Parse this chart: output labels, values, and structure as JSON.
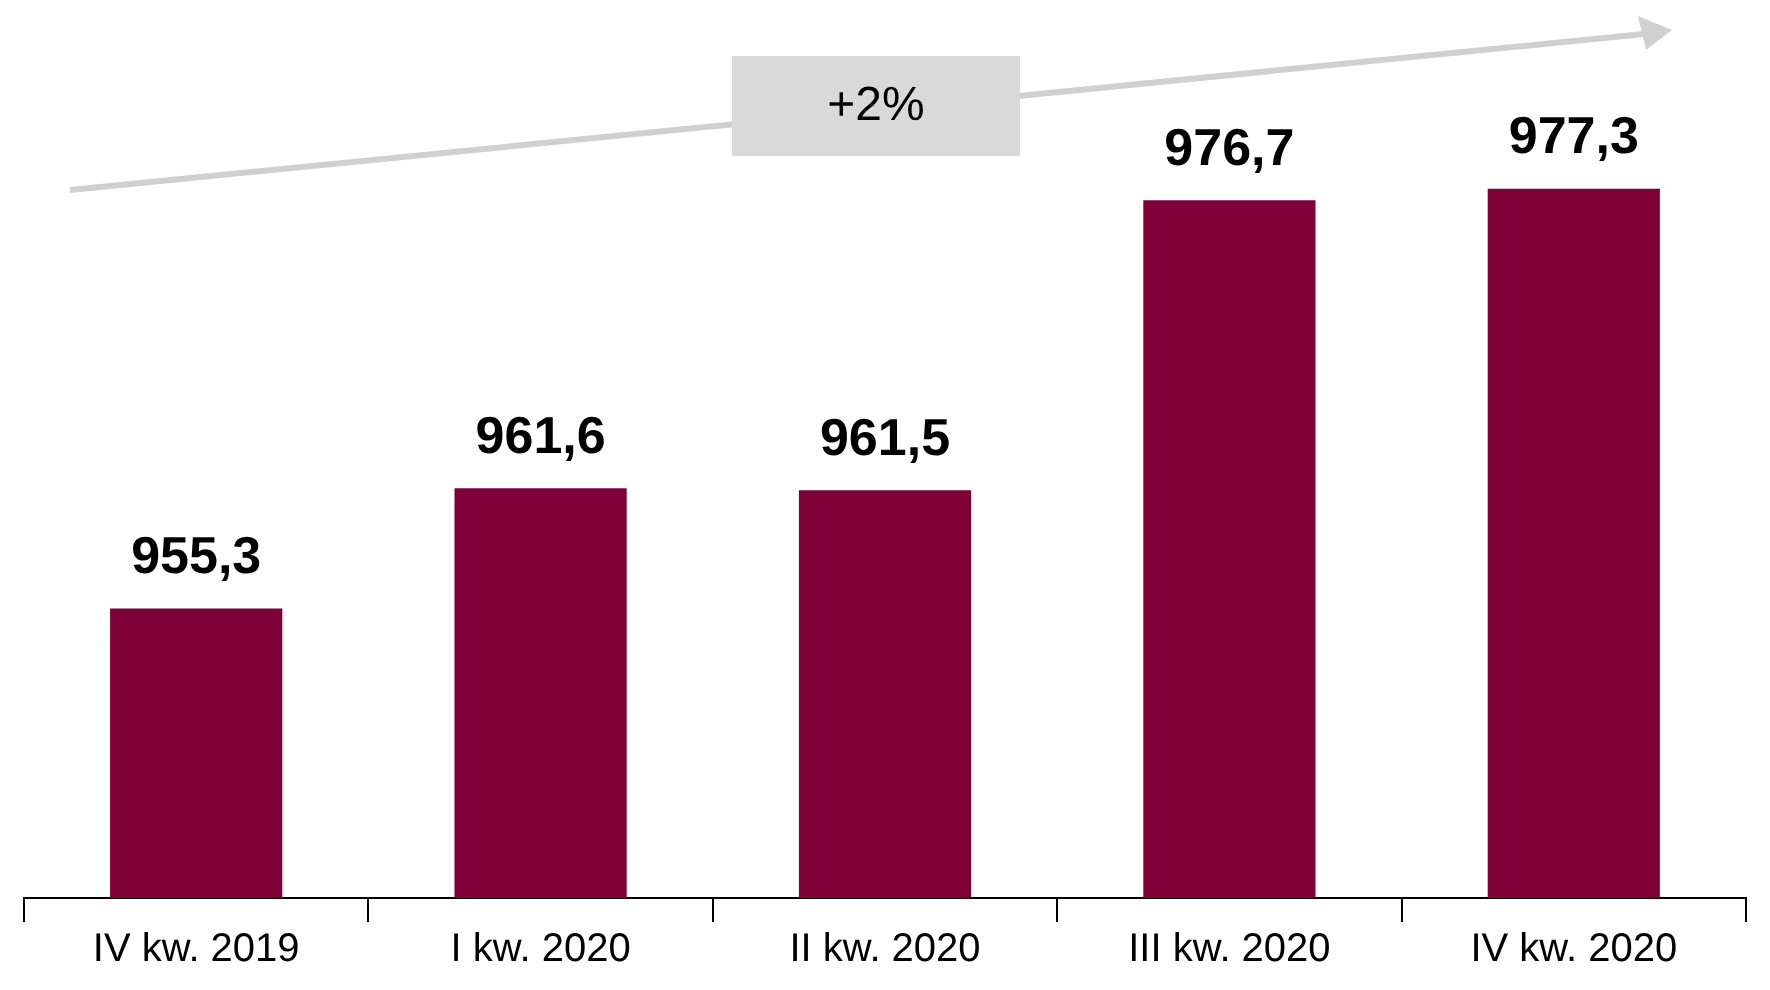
{
  "chart_data": {
    "type": "bar",
    "categories": [
      "IV kw. 2019",
      "I kw. 2020",
      "II kw. 2020",
      "III kw. 2020",
      "IV kw. 2020"
    ],
    "values": [
      955.3,
      961.6,
      961.5,
      976.7,
      977.3
    ],
    "color": "#7f0038",
    "value_labels": [
      "955,3",
      "961,6",
      "961,5",
      "976,7",
      "977,3"
    ],
    "grid": false,
    "legend": false,
    "annotations": [
      "+2%"
    ]
  }
}
